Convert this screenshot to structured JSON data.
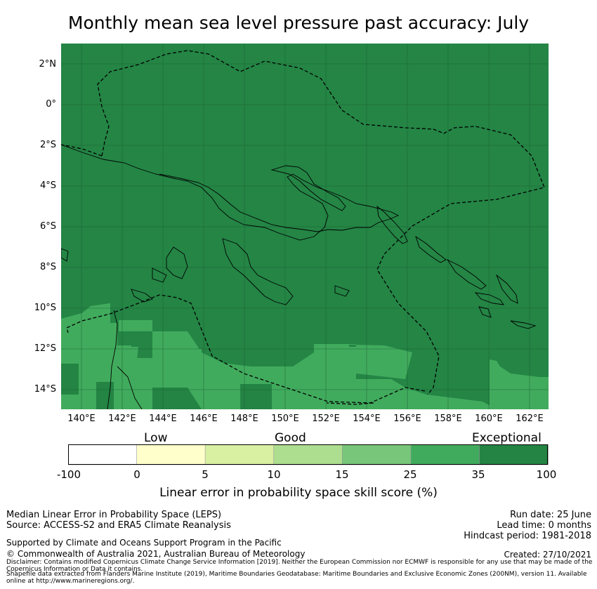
{
  "title": "Monthly mean sea level pressure past accuracy: July",
  "map": {
    "lat_labels": [
      "2°N",
      "0°",
      "2°S",
      "4°S",
      "6°S",
      "8°S",
      "10°S",
      "12°S",
      "14°S"
    ],
    "lon_labels": [
      "140°E",
      "142°E",
      "144°E",
      "146°E",
      "148°E",
      "150°E",
      "152°E",
      "154°E",
      "156°E",
      "158°E",
      "160°E",
      "162°E"
    ],
    "background_color": "#248545",
    "extent": {
      "lon": [
        139,
        163
      ],
      "lat": [
        -15,
        3
      ]
    }
  },
  "colorbar": {
    "category_labels": [
      "Low",
      "Good",
      "Exceptional"
    ],
    "tick_labels": [
      "-100",
      "0",
      "5",
      "10",
      "15",
      "25",
      "35",
      "100"
    ],
    "colors": [
      "#ffffff",
      "#ffffcc",
      "#d9f0a3",
      "#addd8e",
      "#78c679",
      "#41ab5d",
      "#238443"
    ],
    "label": "Linear error in probability space skill score (%)"
  },
  "footer": {
    "left_line1": "Median Linear Error in Probability Space (LEPS)",
    "left_line2": "Source: ACCESS-S2 and ERA5 Climate Reanalysis",
    "support": "Supported by Climate and Oceans Support Program in the Pacific",
    "copyright": "© Commonwealth of Australia 2021, Australian Bureau of Meteorology",
    "disclaimer": "Disclaimer: Contains modified Copernicus Climate Change Service Information [2019]. Neither the European Commission nor ECMWF is responsible for any use that may be made of the Copernicus Information or Data it contains.",
    "shapefile": "Shapefile data extracted from Flanders Marine Institute (2019), Maritime Boundaries Geodatabase: Maritime Boundaries and Exclusive Economic Zones (200NM), version 11. Available online at http://www.marineregions.org/.",
    "run_date": "Run date: 25 June",
    "lead_time": "Lead time: 0 months",
    "hindcast": "Hindcast period: 1981-2018",
    "created": "Created: 27/10/2021"
  }
}
